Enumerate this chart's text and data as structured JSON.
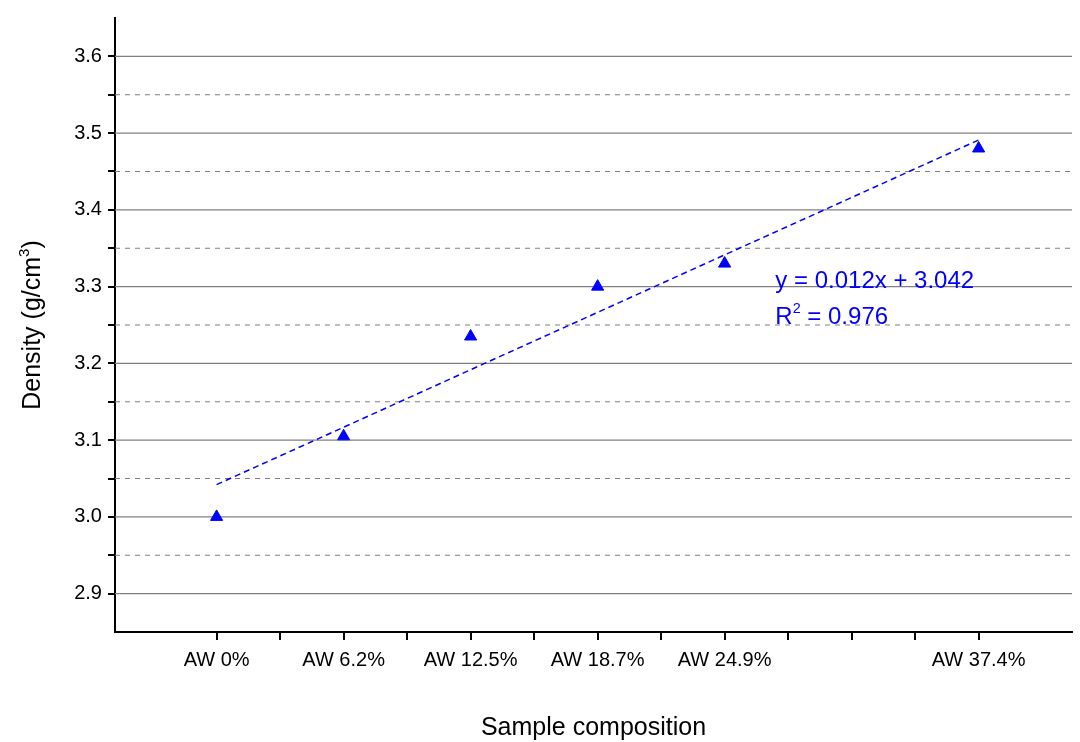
{
  "chart_data": {
    "type": "scatter",
    "xlabel": "Sample composition",
    "ylabel": "Density (g/cm$^{3}$)",
    "categories": [
      "AW 0%",
      null,
      "AW 6.2%",
      null,
      "AW 12.5%",
      null,
      "AW 18.7%",
      null,
      "AW 24.9%",
      null,
      null,
      null,
      "AW 37.4%"
    ],
    "series": [
      {
        "color": "#0000ff",
        "marker": "triangle",
        "values": [
          3.0,
          null,
          3.105,
          null,
          3.235,
          null,
          3.3,
          null,
          3.33,
          null,
          null,
          null,
          3.48
        ]
      },
      {
        "type": "line",
        "color": "#0000ff",
        "line_style": "dashed",
        "marker": "none",
        "x": [
          "AW 0%",
          "AW 37.4%"
        ],
        "values": [
          3.042,
          3.491
        ]
      }
    ],
    "ylim": [
      2.85,
      3.65
    ],
    "yticks": [
      {
        "value": 2.9,
        "label": "2.9"
      },
      {
        "value": 2.95,
        "label": null
      },
      {
        "value": 3.0,
        "label": "3.0"
      },
      {
        "value": 3.05,
        "label": null
      },
      {
        "value": 3.1,
        "label": "3.1"
      },
      {
        "value": 3.15,
        "label": null
      },
      {
        "value": 3.2,
        "label": "3.2"
      },
      {
        "value": 3.25,
        "label": null
      },
      {
        "value": 3.3,
        "label": "3.3"
      },
      {
        "value": 3.35,
        "label": null
      },
      {
        "value": 3.4,
        "label": "3.4"
      },
      {
        "value": 3.45,
        "label": null
      },
      {
        "value": 3.5,
        "label": "3.5"
      },
      {
        "value": 3.55,
        "label": null
      },
      {
        "value": 3.6,
        "label": "3.6"
      }
    ],
    "grid": "y",
    "legend": false,
    "annotations": [
      "y = 0.012x + 3.042",
      "R$^{2}$ = 0.976"
    ]
  }
}
